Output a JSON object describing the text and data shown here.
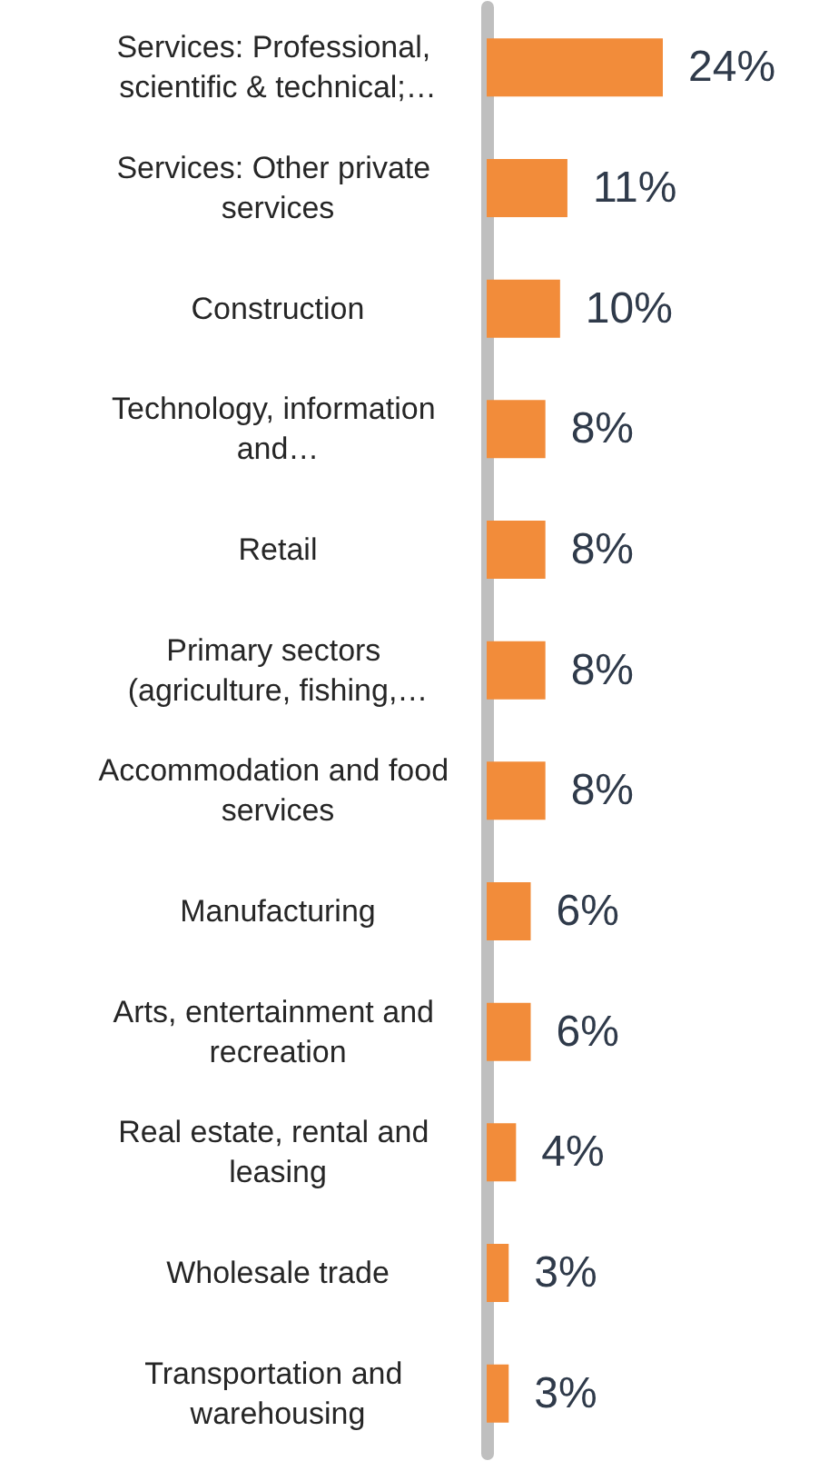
{
  "chart_data": {
    "type": "bar",
    "orientation": "horizontal",
    "categories": [
      "Services: Professional, scientific & technical;…",
      "Services: Other private services",
      "Construction",
      "Technology, information and…",
      "Retail",
      "Primary sectors (agriculture, fishing,…",
      "Accommodation and food services",
      "Manufacturing",
      "Arts, entertainment and recreation",
      "Real estate, rental and leasing",
      "Wholesale trade",
      "Transportation and warehousing"
    ],
    "values": [
      24,
      11,
      10,
      8,
      8,
      8,
      8,
      6,
      6,
      4,
      3,
      3
    ],
    "value_labels": [
      "24%",
      "11%",
      "10%",
      "8%",
      "8%",
      "8%",
      "8%",
      "6%",
      "6%",
      "4%",
      "3%",
      "3%"
    ],
    "color": "#f28c3a"
  }
}
